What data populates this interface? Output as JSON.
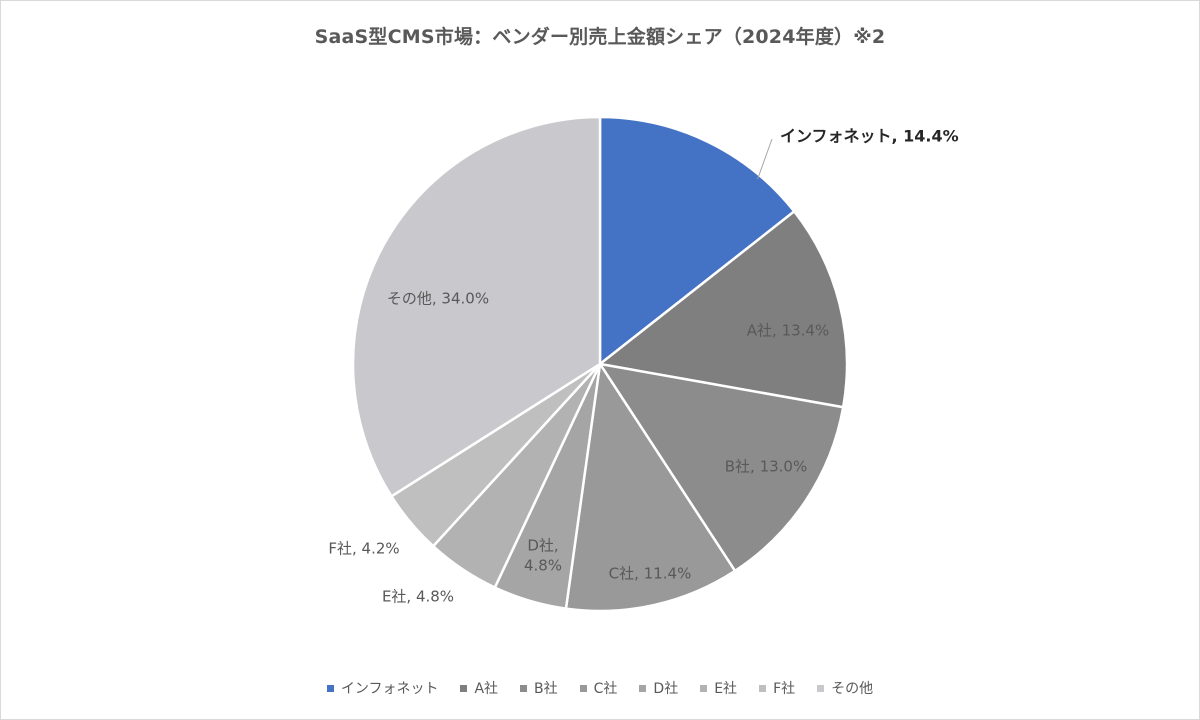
{
  "chart_data": {
    "type": "pie",
    "title": "SaaS型CMS市場：ベンダー別売上金額シェア（2024年度）※2",
    "slices": [
      {
        "name": "インフォネット",
        "value": 14.4,
        "color": "#4472c4",
        "label_lines": [
          "インフォネット, 14.4%"
        ],
        "highlight": true
      },
      {
        "name": "A社",
        "value": 13.4,
        "color": "#7f7f7f",
        "label_lines": [
          "A社, 13.4%"
        ]
      },
      {
        "name": "B社",
        "value": 13.0,
        "color": "#8c8c8c",
        "label_lines": [
          "B社, 13.0%"
        ]
      },
      {
        "name": "C社",
        "value": 11.4,
        "color": "#999999",
        "label_lines": [
          "C社, 11.4%"
        ]
      },
      {
        "name": "D社",
        "value": 4.8,
        "color": "#a5a5a5",
        "label_lines": [
          "D社,",
          "4.8%"
        ]
      },
      {
        "name": "E社",
        "value": 4.8,
        "color": "#b2b2b2",
        "label_lines": [
          "E社, 4.8%"
        ]
      },
      {
        "name": "F社",
        "value": 4.2,
        "color": "#bfbfbf",
        "label_lines": [
          "F社, 4.2%"
        ]
      },
      {
        "name": "その他",
        "value": 34.0,
        "color": "#c9c8cc",
        "label_lines": [
          "その他, 34.0%"
        ]
      }
    ],
    "legend_position": "bottom"
  }
}
